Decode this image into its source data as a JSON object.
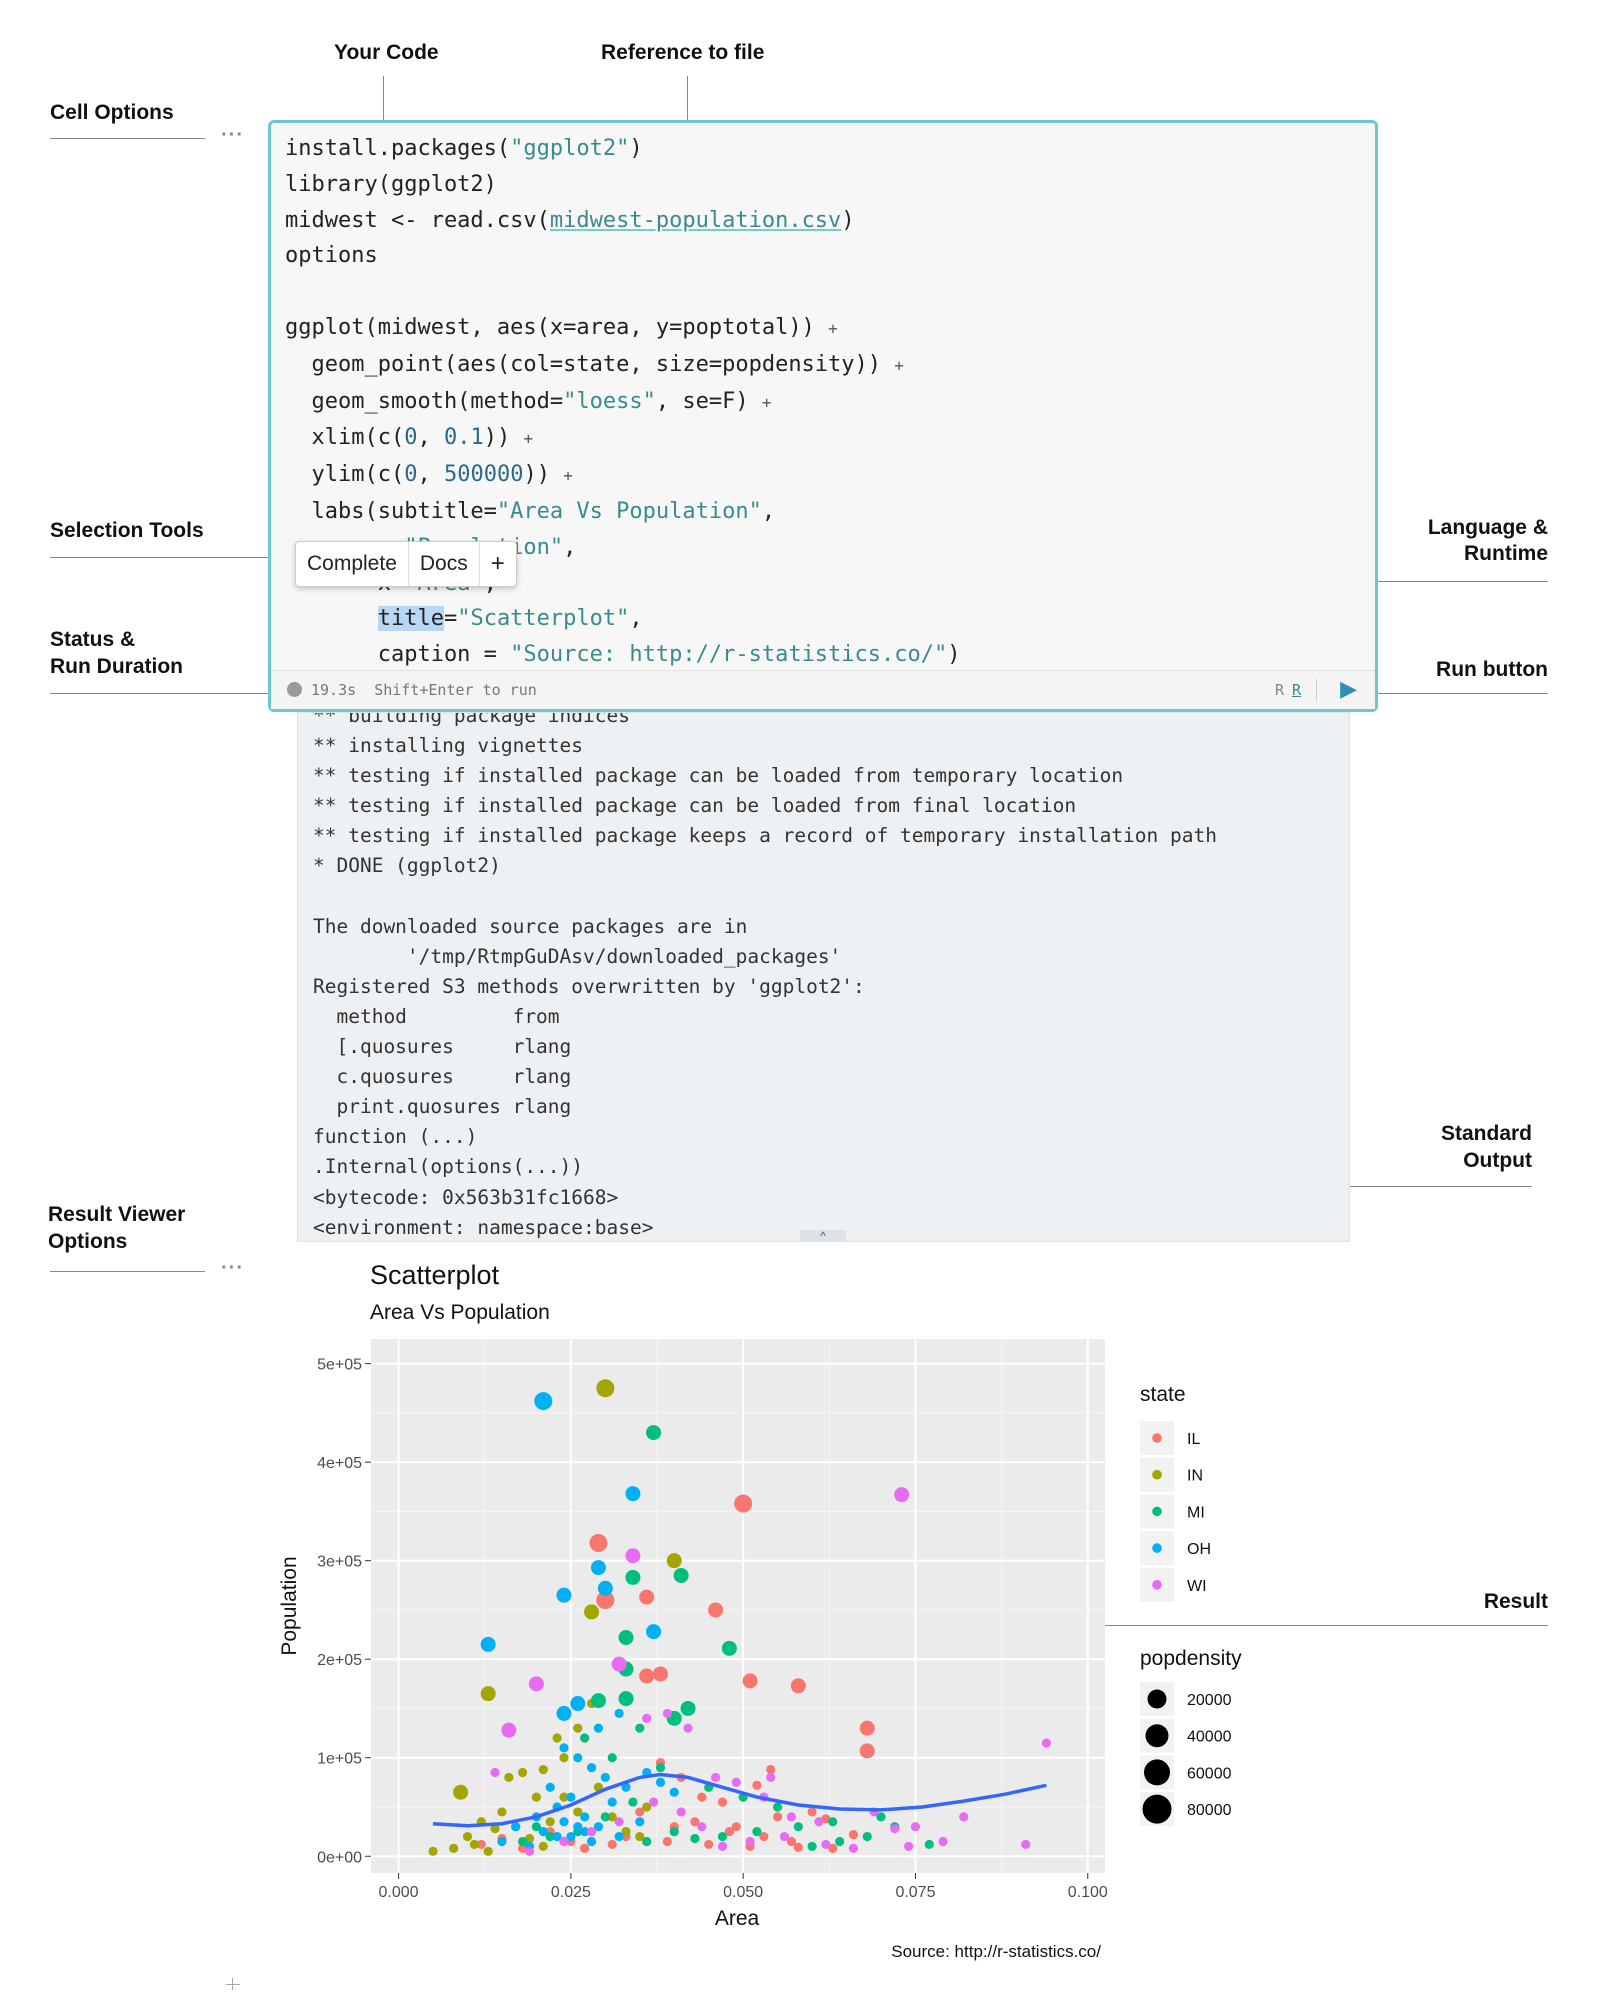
{
  "annotations": {
    "your_code": "Your Code",
    "reference_to_file": "Reference to file",
    "cell_options": "Cell Options",
    "selection_tools": "Selection Tools",
    "language_runtime_1": "Language &",
    "language_runtime_2": "Runtime",
    "status_1": "Status &",
    "status_2": "Run Duration",
    "run_button": "Run button",
    "standard_output_1": "Standard",
    "standard_output_2": "Output",
    "result_viewer_1": "Result Viewer",
    "result_viewer_2": "Options",
    "result": "Result",
    "more_dots": "···"
  },
  "code_lines": [
    "install.packages(\"ggplot2\")",
    "library(ggplot2)",
    "midwest <- read.csv(midwest-population.csv)",
    "options",
    "",
    "ggplot(midwest, aes(x=area, y=poptotal)) +",
    "  geom_point(aes(col=state, size=popdensity)) +",
    "  geom_smooth(method=\"loess\", se=F) +",
    "  xlim(c(0, 0.1)) +",
    "  ylim(c(0, 500000)) +",
    "  labs(subtitle=\"Area Vs Population\",",
    "       y=\"Population\",",
    "       x=\"Area\",",
    "       title=\"Scatterplot\",",
    "       caption = \"Source: http://r-statistics.co/\")"
  ],
  "selection_popup": {
    "complete": "Complete",
    "docs": "Docs",
    "add": "+"
  },
  "status_bar": {
    "duration": "19.3s",
    "hint": "Shift+Enter to run",
    "language": "R",
    "runtime": "R",
    "run_icon": "play-icon"
  },
  "output_lines": [
    "** building package indices",
    "** installing vignettes",
    "** testing if installed package can be loaded from temporary location",
    "** testing if installed package can be loaded from final location",
    "** testing if installed package keeps a record of temporary installation path",
    "* DONE (ggplot2)",
    "",
    "The downloaded source packages are in",
    "        '/tmp/RtmpGuDAsv/downloaded_packages'",
    "Registered S3 methods overwritten by 'ggplot2':",
    "  method         from ",
    "  [.quosures     rlang",
    "  c.quosures     rlang",
    "  print.quosures rlang",
    "function (...) ",
    ".Internal(options(...))",
    "<bytecode: 0x563b31fc1668>",
    "<environment: namespace:base>"
  ],
  "colors": {
    "accent": "#6ec6cf",
    "IL": "#F8766D",
    "IN": "#A3A500",
    "MI": "#00BF7D",
    "OH": "#00B0F6",
    "WI": "#E76BF3",
    "smooth": "#3366FF"
  },
  "chart_data": {
    "type": "scatter",
    "title": "Scatterplot",
    "subtitle": "Area Vs Population",
    "xlabel": "Area",
    "ylabel": "Population",
    "caption": "Source: http://r-statistics.co/",
    "xlim": [
      0,
      0.1
    ],
    "ylim": [
      0,
      500000
    ],
    "x_ticks": [
      "0.000",
      "0.025",
      "0.050",
      "0.075",
      "0.100"
    ],
    "y_ticks": [
      "0e+00",
      "1e+05",
      "2e+05",
      "3e+05",
      "4e+05",
      "5e+05"
    ],
    "legend_color_title": "state",
    "legend_size_title": "popdensity",
    "states": [
      "IL",
      "IN",
      "MI",
      "OH",
      "WI"
    ],
    "sizes": [
      "20000",
      "40000",
      "60000",
      "80000"
    ],
    "series": [
      {
        "name": "IL",
        "points": [
          [
            0.029,
            318000,
            3
          ],
          [
            0.03,
            260000,
            3
          ],
          [
            0.036,
            263000,
            2
          ],
          [
            0.05,
            358000,
            3
          ],
          [
            0.046,
            250000,
            2
          ],
          [
            0.038,
            185000,
            2
          ],
          [
            0.036,
            183000,
            2
          ],
          [
            0.051,
            178000,
            2
          ],
          [
            0.058,
            173000,
            2
          ],
          [
            0.068,
            130000,
            2
          ],
          [
            0.068,
            107000,
            2
          ],
          [
            0.041,
            80000,
            1
          ],
          [
            0.044,
            60000,
            1
          ],
          [
            0.047,
            55000,
            1
          ],
          [
            0.052,
            72000,
            1
          ],
          [
            0.055,
            40000,
            1
          ],
          [
            0.06,
            45000,
            1
          ],
          [
            0.04,
            30000,
            1
          ],
          [
            0.043,
            35000,
            1
          ],
          [
            0.048,
            25000,
            1
          ],
          [
            0.053,
            20000,
            1
          ],
          [
            0.057,
            15000,
            1
          ],
          [
            0.062,
            38000,
            1
          ],
          [
            0.066,
            22000,
            1
          ],
          [
            0.035,
            45000,
            1
          ],
          [
            0.033,
            20000,
            1
          ],
          [
            0.025,
            15000,
            1
          ],
          [
            0.022,
            25000,
            1
          ],
          [
            0.018,
            8000,
            1
          ],
          [
            0.012,
            12000,
            1
          ],
          [
            0.015,
            18000,
            1
          ],
          [
            0.027,
            8000,
            1
          ],
          [
            0.031,
            12000,
            1
          ],
          [
            0.038,
            95000,
            1
          ],
          [
            0.049,
            30000,
            1
          ],
          [
            0.054,
            88000,
            1
          ],
          [
            0.039,
            15000,
            1
          ],
          [
            0.045,
            12000,
            1
          ],
          [
            0.051,
            10000,
            1
          ],
          [
            0.058,
            9000,
            1
          ],
          [
            0.063,
            8000,
            1
          ]
        ]
      },
      {
        "name": "IN",
        "points": [
          [
            0.03,
            475000,
            3
          ],
          [
            0.04,
            300000,
            2
          ],
          [
            0.028,
            248000,
            2
          ],
          [
            0.013,
            165000,
            2
          ],
          [
            0.009,
            65000,
            2
          ],
          [
            0.016,
            80000,
            1
          ],
          [
            0.018,
            85000,
            1
          ],
          [
            0.023,
            120000,
            1
          ],
          [
            0.026,
            130000,
            1
          ],
          [
            0.028,
            155000,
            1
          ],
          [
            0.021,
            88000,
            1
          ],
          [
            0.024,
            100000,
            1
          ],
          [
            0.02,
            60000,
            1
          ],
          [
            0.015,
            45000,
            1
          ],
          [
            0.012,
            35000,
            1
          ],
          [
            0.01,
            20000,
            1
          ],
          [
            0.014,
            28000,
            1
          ],
          [
            0.017,
            30000,
            1
          ],
          [
            0.022,
            35000,
            1
          ],
          [
            0.019,
            18000,
            1
          ],
          [
            0.005,
            5000,
            1
          ],
          [
            0.008,
            8000,
            1
          ],
          [
            0.011,
            12000,
            1
          ],
          [
            0.026,
            45000,
            1
          ],
          [
            0.031,
            40000,
            1
          ],
          [
            0.033,
            25000,
            1
          ],
          [
            0.036,
            50000,
            1
          ],
          [
            0.029,
            70000,
            1
          ],
          [
            0.024,
            60000,
            1
          ],
          [
            0.035,
            20000,
            1
          ],
          [
            0.013,
            5000,
            1
          ],
          [
            0.021,
            10000,
            1
          ]
        ]
      },
      {
        "name": "MI",
        "points": [
          [
            0.037,
            430000,
            2
          ],
          [
            0.034,
            283000,
            2
          ],
          [
            0.041,
            285000,
            2
          ],
          [
            0.033,
            222000,
            2
          ],
          [
            0.048,
            211000,
            2
          ],
          [
            0.033,
            190000,
            2
          ],
          [
            0.033,
            160000,
            2
          ],
          [
            0.042,
            150000,
            2
          ],
          [
            0.04,
            140000,
            2
          ],
          [
            0.029,
            158000,
            2
          ],
          [
            0.027,
            120000,
            1
          ],
          [
            0.035,
            130000,
            1
          ],
          [
            0.031,
            100000,
            1
          ],
          [
            0.038,
            90000,
            1
          ],
          [
            0.045,
            70000,
            1
          ],
          [
            0.05,
            60000,
            1
          ],
          [
            0.055,
            50000,
            1
          ],
          [
            0.063,
            35000,
            1
          ],
          [
            0.07,
            40000,
            1
          ],
          [
            0.072,
            30000,
            1
          ],
          [
            0.068,
            20000,
            1
          ],
          [
            0.058,
            30000,
            1
          ],
          [
            0.052,
            25000,
            1
          ],
          [
            0.047,
            20000,
            1
          ],
          [
            0.043,
            18000,
            1
          ],
          [
            0.04,
            25000,
            1
          ],
          [
            0.036,
            15000,
            1
          ],
          [
            0.034,
            55000,
            1
          ],
          [
            0.03,
            40000,
            1
          ],
          [
            0.026,
            25000,
            1
          ],
          [
            0.022,
            20000,
            1
          ],
          [
            0.02,
            30000,
            1
          ],
          [
            0.018,
            15000,
            1
          ],
          [
            0.064,
            15000,
            1
          ],
          [
            0.06,
            10000,
            1
          ],
          [
            0.077,
            12000,
            1
          ]
        ]
      },
      {
        "name": "OH",
        "points": [
          [
            0.021,
            462000,
            3
          ],
          [
            0.034,
            368000,
            2
          ],
          [
            0.029,
            293000,
            2
          ],
          [
            0.03,
            272000,
            2
          ],
          [
            0.024,
            265000,
            2
          ],
          [
            0.037,
            228000,
            2
          ],
          [
            0.013,
            215000,
            2
          ],
          [
            0.024,
            145000,
            2
          ],
          [
            0.026,
            155000,
            2
          ],
          [
            0.032,
            145000,
            1
          ],
          [
            0.029,
            130000,
            1
          ],
          [
            0.024,
            110000,
            1
          ],
          [
            0.026,
            100000,
            1
          ],
          [
            0.028,
            90000,
            1
          ],
          [
            0.03,
            80000,
            1
          ],
          [
            0.033,
            70000,
            1
          ],
          [
            0.025,
            60000,
            1
          ],
          [
            0.023,
            50000,
            1
          ],
          [
            0.027,
            40000,
            1
          ],
          [
            0.029,
            30000,
            1
          ],
          [
            0.031,
            55000,
            1
          ],
          [
            0.022,
            70000,
            1
          ],
          [
            0.02,
            40000,
            1
          ],
          [
            0.017,
            30000,
            1
          ],
          [
            0.015,
            15000,
            1
          ],
          [
            0.025,
            20000,
            1
          ],
          [
            0.028,
            15000,
            1
          ],
          [
            0.032,
            20000,
            1
          ],
          [
            0.035,
            35000,
            1
          ],
          [
            0.024,
            35000,
            1
          ],
          [
            0.026,
            30000,
            1
          ],
          [
            0.027,
            25000,
            1
          ],
          [
            0.023,
            20000,
            1
          ],
          [
            0.021,
            25000,
            1
          ],
          [
            0.019,
            10000,
            1
          ],
          [
            0.036,
            85000,
            1
          ],
          [
            0.038,
            75000,
            1
          ],
          [
            0.04,
            65000,
            1
          ]
        ]
      },
      {
        "name": "WI",
        "points": [
          [
            0.073,
            367000,
            2
          ],
          [
            0.034,
            305000,
            2
          ],
          [
            0.032,
            195000,
            2
          ],
          [
            0.02,
            175000,
            2
          ],
          [
            0.016,
            128000,
            2
          ],
          [
            0.094,
            115000,
            1
          ],
          [
            0.036,
            140000,
            1
          ],
          [
            0.039,
            145000,
            1
          ],
          [
            0.042,
            130000,
            1
          ],
          [
            0.046,
            80000,
            1
          ],
          [
            0.049,
            75000,
            1
          ],
          [
            0.054,
            80000,
            1
          ],
          [
            0.053,
            60000,
            1
          ],
          [
            0.057,
            40000,
            1
          ],
          [
            0.061,
            35000,
            1
          ],
          [
            0.069,
            45000,
            1
          ],
          [
            0.075,
            30000,
            1
          ],
          [
            0.082,
            40000,
            1
          ],
          [
            0.091,
            12000,
            1
          ],
          [
            0.079,
            15000,
            1
          ],
          [
            0.074,
            10000,
            1
          ],
          [
            0.066,
            8000,
            1
          ],
          [
            0.062,
            12000,
            1
          ],
          [
            0.056,
            20000,
            1
          ],
          [
            0.051,
            15000,
            1
          ],
          [
            0.047,
            10000,
            1
          ],
          [
            0.044,
            30000,
            1
          ],
          [
            0.041,
            45000,
            1
          ],
          [
            0.037,
            55000,
            1
          ],
          [
            0.032,
            35000,
            1
          ],
          [
            0.028,
            25000,
            1
          ],
          [
            0.024,
            15000,
            1
          ],
          [
            0.019,
            5000,
            1
          ],
          [
            0.014,
            85000,
            1
          ],
          [
            0.072,
            28000,
            1
          ]
        ]
      }
    ],
    "smooth_line": [
      [
        0.005,
        33000
      ],
      [
        0.01,
        31000
      ],
      [
        0.015,
        33000
      ],
      [
        0.02,
        40000
      ],
      [
        0.025,
        52000
      ],
      [
        0.03,
        68000
      ],
      [
        0.035,
        80000
      ],
      [
        0.038,
        83000
      ],
      [
        0.042,
        80000
      ],
      [
        0.047,
        70000
      ],
      [
        0.052,
        60000
      ],
      [
        0.058,
        52000
      ],
      [
        0.064,
        48000
      ],
      [
        0.07,
        47000
      ],
      [
        0.076,
        50000
      ],
      [
        0.082,
        56000
      ],
      [
        0.088,
        63000
      ],
      [
        0.094,
        72000
      ]
    ]
  }
}
